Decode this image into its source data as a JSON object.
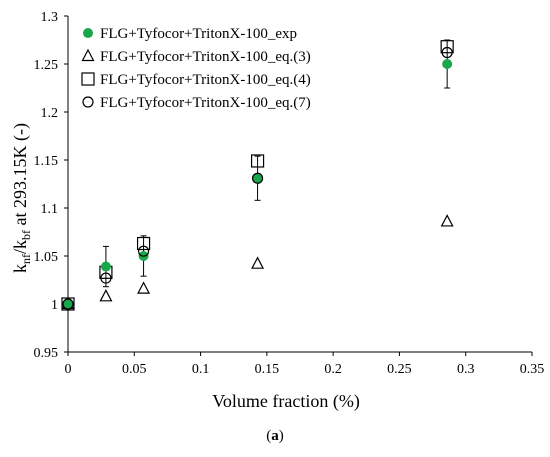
{
  "chart_data": {
    "type": "scatter",
    "xlabel": "Volume fraction (%)",
    "ylabel": "k_nf/k_bf at 293.15K (-)",
    "ylabel_parts": {
      "k1": "k",
      "sub1": "nf",
      "slash": "/k",
      "sub2": "bf",
      "rest": " at 293.15K (-)"
    },
    "xlim": [
      0,
      0.35
    ],
    "ylim": [
      0.95,
      1.3
    ],
    "x_ticks": [
      "0",
      "0.05",
      "0.1",
      "0.15",
      "0.2",
      "0.25",
      "0.3",
      "0.35"
    ],
    "y_ticks": [
      "0.95",
      "1",
      "1.05",
      "1.1",
      "1.15",
      "1.2",
      "1.25",
      "1.3"
    ],
    "grid": false,
    "legend_position": "top-left",
    "series": [
      {
        "name": "FLG+Tyfocor+TritonX-100_exp",
        "marker": "filled-circle",
        "color": "#1aa64a",
        "x": [
          0,
          0.0286,
          0.057,
          0.143,
          0.286
        ],
        "y": [
          1.0,
          1.039,
          1.05,
          1.131,
          1.25
        ],
        "error": [
          0,
          0.021,
          0.021,
          0.023,
          0.025
        ]
      },
      {
        "name": "FLG+Tyfocor+TritonX-100_eq.(3)",
        "marker": "triangle",
        "color": "#000000",
        "x": [
          0,
          0.0286,
          0.057,
          0.143,
          0.286
        ],
        "y": [
          1.0,
          1.008,
          1.016,
          1.042,
          1.086
        ]
      },
      {
        "name": "FLG+Tyfocor+TritonX-100_eq.(4)",
        "marker": "square",
        "color": "#000000",
        "x": [
          0,
          0.0286,
          0.057,
          0.143,
          0.286
        ],
        "y": [
          1.0,
          1.033,
          1.063,
          1.149,
          1.268
        ]
      },
      {
        "name": "FLG+Tyfocor+TritonX-100_eq.(7)",
        "marker": "circle",
        "color": "#000000",
        "x": [
          0,
          0.0286,
          0.057,
          0.143,
          0.286
        ],
        "y": [
          1.0,
          1.027,
          1.055,
          1.131,
          1.262
        ]
      }
    ]
  },
  "caption": {
    "open": "(",
    "label": "a",
    "close": ")"
  }
}
